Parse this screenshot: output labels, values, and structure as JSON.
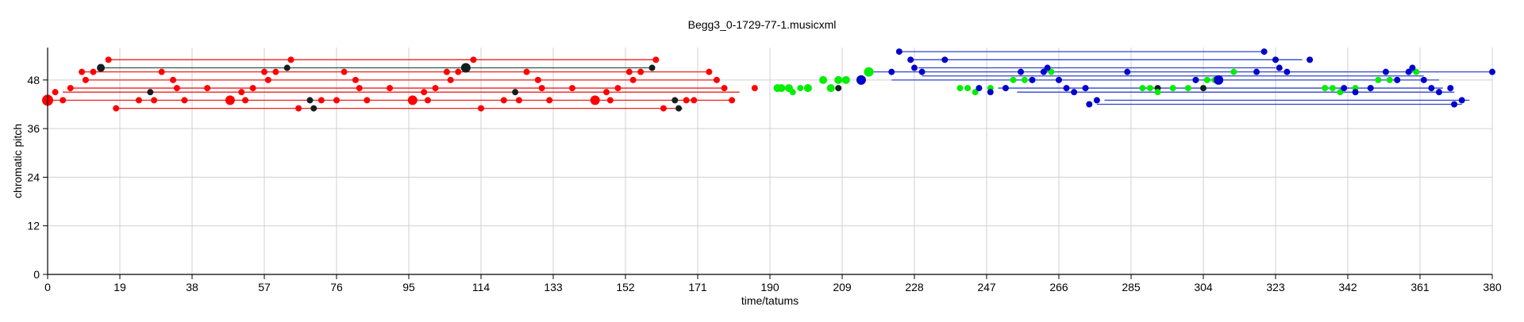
{
  "chart_data": {
    "type": "scatter",
    "title": "Begg3_0-1729-77-1.musicxml",
    "xlabel": "time/tatums",
    "ylabel": "chromatic pitch",
    "xlim": [
      0,
      380
    ],
    "ylim": [
      0,
      56
    ],
    "x_ticks": [
      0,
      19,
      38,
      57,
      76,
      95,
      114,
      133,
      152,
      171,
      190,
      209,
      228,
      247,
      266,
      285,
      304,
      323,
      342,
      361,
      380
    ],
    "y_ticks": [
      0,
      12,
      24,
      36,
      48
    ],
    "grid": true,
    "colors": {
      "red": "#ff0000",
      "green": "#00ee00",
      "blue": "#0000cc",
      "black": "#102020",
      "red_line": "#ee2222",
      "dark_line": "#335544",
      "blue_line": "#3344cc"
    },
    "lines": [
      {
        "x1": 16,
        "x2": 160,
        "y": 53,
        "color": "red_line"
      },
      {
        "x1": 14,
        "x2": 159,
        "y": 51,
        "color": "dark_line"
      },
      {
        "x1": 9,
        "x2": 174,
        "y": 50,
        "color": "red_line"
      },
      {
        "x1": 10,
        "x2": 176,
        "y": 48,
        "color": "red_line"
      },
      {
        "x1": 6,
        "x2": 178,
        "y": 46,
        "color": "red_line"
      },
      {
        "x1": 4,
        "x2": 182,
        "y": 45,
        "color": "red_line"
      },
      {
        "x1": 0,
        "x2": 180,
        "y": 43,
        "color": "red_line"
      },
      {
        "x1": 18,
        "x2": 167,
        "y": 41,
        "color": "red_line"
      },
      {
        "x1": 224,
        "x2": 320,
        "y": 55,
        "color": "blue_line"
      },
      {
        "x1": 227,
        "x2": 330,
        "y": 53,
        "color": "blue_line"
      },
      {
        "x1": 229,
        "x2": 323,
        "y": 51,
        "color": "blue_line"
      },
      {
        "x1": 215,
        "x2": 380,
        "y": 50,
        "color": "blue_line"
      },
      {
        "x1": 230,
        "x2": 362,
        "y": 49,
        "color": "blue_line"
      },
      {
        "x1": 222,
        "x2": 366,
        "y": 48,
        "color": "blue_line"
      },
      {
        "x1": 250,
        "x2": 367,
        "y": 46,
        "color": "blue_line"
      },
      {
        "x1": 255,
        "x2": 370,
        "y": 45,
        "color": "blue_line"
      },
      {
        "x1": 278,
        "x2": 374,
        "y": 43,
        "color": "blue_line"
      },
      {
        "x1": 276,
        "x2": 372,
        "y": 42,
        "color": "blue_line"
      }
    ],
    "series": [
      {
        "color": "red",
        "points": [
          [
            0,
            43,
            7
          ],
          [
            2,
            45,
            4
          ],
          [
            4,
            43,
            4
          ],
          [
            6,
            46,
            4
          ],
          [
            9,
            50,
            4
          ],
          [
            10,
            48,
            4
          ],
          [
            12,
            50,
            4
          ],
          [
            16,
            53,
            4
          ],
          [
            18,
            41,
            4
          ],
          [
            24,
            43,
            4
          ],
          [
            28,
            43,
            4
          ],
          [
            30,
            50,
            4
          ],
          [
            33,
            48,
            4
          ],
          [
            34,
            46,
            4
          ],
          [
            36,
            43,
            4
          ],
          [
            42,
            46,
            4
          ],
          [
            48,
            43,
            6
          ],
          [
            51,
            45,
            4
          ],
          [
            52,
            43,
            4
          ],
          [
            54,
            46,
            4
          ],
          [
            57,
            50,
            4
          ],
          [
            58,
            48,
            4
          ],
          [
            60,
            50,
            4
          ],
          [
            64,
            53,
            4
          ],
          [
            66,
            41,
            4
          ],
          [
            72,
            43,
            4
          ],
          [
            76,
            43,
            4
          ],
          [
            78,
            50,
            4
          ],
          [
            81,
            48,
            4
          ],
          [
            82,
            46,
            4
          ],
          [
            84,
            43,
            4
          ],
          [
            90,
            46,
            4
          ],
          [
            96,
            43,
            6
          ],
          [
            99,
            45,
            4
          ],
          [
            100,
            43,
            4
          ],
          [
            102,
            46,
            4
          ],
          [
            105,
            50,
            4
          ],
          [
            106,
            48,
            4
          ],
          [
            108,
            50,
            4
          ],
          [
            112,
            53,
            4
          ],
          [
            114,
            41,
            4
          ],
          [
            120,
            43,
            4
          ],
          [
            124,
            43,
            4
          ],
          [
            126,
            50,
            4
          ],
          [
            129,
            48,
            4
          ],
          [
            130,
            46,
            4
          ],
          [
            132,
            43,
            4
          ],
          [
            138,
            46,
            4
          ],
          [
            144,
            43,
            6
          ],
          [
            147,
            45,
            4
          ],
          [
            148,
            43,
            4
          ],
          [
            150,
            46,
            4
          ],
          [
            153,
            50,
            4
          ],
          [
            154,
            48,
            4
          ],
          [
            156,
            50,
            4
          ],
          [
            160,
            53,
            4
          ],
          [
            162,
            41,
            4
          ],
          [
            168,
            43,
            4
          ],
          [
            170,
            43,
            4
          ],
          [
            174,
            50,
            4
          ],
          [
            176,
            48,
            4
          ],
          [
            178,
            46,
            4
          ],
          [
            180,
            43,
            4
          ],
          [
            186,
            46,
            4
          ]
        ]
      },
      {
        "color": "black",
        "points": [
          [
            14,
            51,
            5
          ],
          [
            27,
            45,
            4
          ],
          [
            63,
            51,
            4
          ],
          [
            69,
            43,
            4
          ],
          [
            70,
            41,
            4
          ],
          [
            110,
            51,
            6
          ],
          [
            123,
            45,
            4
          ],
          [
            159,
            51,
            4
          ],
          [
            165,
            43,
            4
          ],
          [
            166,
            41,
            4
          ],
          [
            208,
            46,
            4
          ],
          [
            292,
            46,
            4
          ],
          [
            304,
            46,
            4
          ]
        ]
      },
      {
        "color": "green",
        "points": [
          [
            192,
            46,
            5
          ],
          [
            193,
            46,
            5
          ],
          [
            195,
            46,
            5
          ],
          [
            196,
            45,
            4
          ],
          [
            198,
            46,
            4
          ],
          [
            200,
            46,
            5
          ],
          [
            204,
            48,
            5
          ],
          [
            206,
            46,
            5
          ],
          [
            208,
            48,
            5
          ],
          [
            210,
            48,
            5
          ],
          [
            216,
            50,
            6
          ],
          [
            240,
            46,
            4
          ],
          [
            242,
            46,
            4
          ],
          [
            244,
            45,
            4
          ],
          [
            248,
            46,
            4
          ],
          [
            252,
            46,
            4
          ],
          [
            254,
            48,
            4
          ],
          [
            257,
            48,
            4
          ],
          [
            259,
            48,
            4
          ],
          [
            264,
            50,
            4
          ],
          [
            288,
            46,
            4
          ],
          [
            290,
            46,
            4
          ],
          [
            292,
            45,
            4
          ],
          [
            296,
            46,
            4
          ],
          [
            300,
            46,
            4
          ],
          [
            302,
            48,
            4
          ],
          [
            305,
            48,
            4
          ],
          [
            307,
            48,
            4
          ],
          [
            312,
            50,
            4
          ],
          [
            336,
            46,
            4
          ],
          [
            338,
            46,
            4
          ],
          [
            340,
            45,
            4
          ],
          [
            344,
            46,
            4
          ],
          [
            348,
            46,
            4
          ],
          [
            350,
            48,
            4
          ],
          [
            353,
            48,
            4
          ],
          [
            355,
            48,
            4
          ],
          [
            360,
            50,
            4
          ]
        ]
      },
      {
        "color": "blue",
        "points": [
          [
            214,
            48,
            6
          ],
          [
            222,
            50,
            4
          ],
          [
            224,
            55,
            4
          ],
          [
            227,
            53,
            4
          ],
          [
            228,
            51,
            4
          ],
          [
            230,
            50,
            4
          ],
          [
            236,
            53,
            4
          ],
          [
            245,
            46,
            4
          ],
          [
            248,
            45,
            4
          ],
          [
            252,
            46,
            4
          ],
          [
            256,
            50,
            4
          ],
          [
            259,
            48,
            4
          ],
          [
            262,
            50,
            4
          ],
          [
            263,
            51,
            4
          ],
          [
            266,
            48,
            4
          ],
          [
            268,
            46,
            4
          ],
          [
            270,
            45,
            4
          ],
          [
            273,
            46,
            4
          ],
          [
            274,
            42,
            4
          ],
          [
            276,
            43,
            4
          ],
          [
            284,
            50,
            4
          ],
          [
            302,
            48,
            4
          ],
          [
            308,
            48,
            6
          ],
          [
            318,
            50,
            4
          ],
          [
            320,
            55,
            4
          ],
          [
            323,
            53,
            4
          ],
          [
            324,
            51,
            4
          ],
          [
            326,
            50,
            4
          ],
          [
            332,
            53,
            4
          ],
          [
            341,
            46,
            4
          ],
          [
            344,
            45,
            4
          ],
          [
            348,
            46,
            4
          ],
          [
            352,
            50,
            4
          ],
          [
            355,
            48,
            4
          ],
          [
            358,
            50,
            4
          ],
          [
            359,
            51,
            4
          ],
          [
            362,
            48,
            4
          ],
          [
            364,
            46,
            4
          ],
          [
            366,
            45,
            4
          ],
          [
            369,
            46,
            4
          ],
          [
            370,
            42,
            4
          ],
          [
            372,
            43,
            4
          ],
          [
            380,
            50,
            4
          ]
        ]
      }
    ]
  }
}
